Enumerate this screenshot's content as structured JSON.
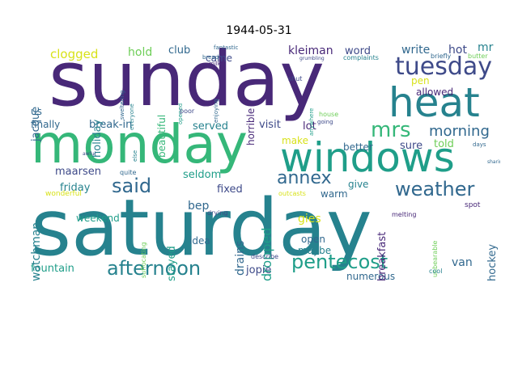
{
  "title": "1944-05-31",
  "colors": {
    "purple": "#482878",
    "indigo": "#3e4a89",
    "blue": "#31688e",
    "teal": "#26828e",
    "sea": "#1f9e89",
    "green": "#35b779",
    "lime": "#6ece58",
    "yellow": "#d8e219"
  },
  "words": [
    {
      "text": "saturday"
    },
    {
      "text": "sunday"
    },
    {
      "text": "monday"
    },
    {
      "text": "windows"
    },
    {
      "text": "heat"
    },
    {
      "text": "tuesday"
    },
    {
      "text": "annex"
    },
    {
      "text": "mrs"
    },
    {
      "text": "weather"
    },
    {
      "text": "afternoon"
    },
    {
      "text": "pentecost"
    },
    {
      "text": "said"
    },
    {
      "text": "morning"
    },
    {
      "text": "holiday"
    },
    {
      "text": "clogged"
    },
    {
      "text": "hold"
    },
    {
      "text": "club"
    },
    {
      "text": "kleiman"
    },
    {
      "text": "word"
    },
    {
      "text": "write"
    },
    {
      "text": "hot"
    },
    {
      "text": "mr"
    },
    {
      "text": "came"
    },
    {
      "text": "pen"
    },
    {
      "text": "allowed"
    },
    {
      "text": "jacque"
    },
    {
      "text": "us"
    },
    {
      "text": "beautiful"
    },
    {
      "text": "horrible"
    },
    {
      "text": "served"
    },
    {
      "text": "visit"
    },
    {
      "text": "lot"
    },
    {
      "text": "break-in"
    },
    {
      "text": "finally"
    },
    {
      "text": "told"
    },
    {
      "text": "sure"
    },
    {
      "text": "better"
    },
    {
      "text": "make"
    },
    {
      "text": "maarsen"
    },
    {
      "text": "friday"
    },
    {
      "text": "seldom"
    },
    {
      "text": "watchman"
    },
    {
      "text": "fixed"
    },
    {
      "text": "dropped"
    },
    {
      "text": "breakfast"
    },
    {
      "text": "give"
    },
    {
      "text": "warm"
    },
    {
      "text": "gies"
    },
    {
      "text": "bep"
    },
    {
      "text": "weekend"
    },
    {
      "text": "drains"
    },
    {
      "text": "stayed"
    },
    {
      "text": "idea"
    },
    {
      "text": "open"
    },
    {
      "text": "maybe"
    },
    {
      "text": "jopie"
    },
    {
      "text": "fountain"
    },
    {
      "text": "van"
    },
    {
      "text": "hockey"
    },
    {
      "text": "numerous"
    },
    {
      "text": "wonderful"
    },
    {
      "text": "suffocating"
    },
    {
      "text": "drying"
    },
    {
      "text": "unbearable"
    },
    {
      "text": "spot"
    },
    {
      "text": "melting"
    },
    {
      "text": "outcasts"
    },
    {
      "text": "describe"
    },
    {
      "text": "cool"
    },
    {
      "text": "fantastic"
    },
    {
      "text": "bread"
    },
    {
      "text": "milk"
    },
    {
      "text": "complaints"
    },
    {
      "text": "grumbling"
    },
    {
      "text": "briefly"
    },
    {
      "text": "butter"
    },
    {
      "text": "sweltering"
    },
    {
      "text": "everyone"
    },
    {
      "text": "opened"
    },
    {
      "text": "poor"
    },
    {
      "text": "enjoying"
    },
    {
      "text": "shut"
    },
    {
      "text": "anywhere"
    },
    {
      "text": "house"
    },
    {
      "text": "going"
    },
    {
      "text": "days"
    },
    {
      "text": "quite"
    },
    {
      "text": "else"
    },
    {
      "text": "awful"
    },
    {
      "text": "sharing"
    }
  ]
}
